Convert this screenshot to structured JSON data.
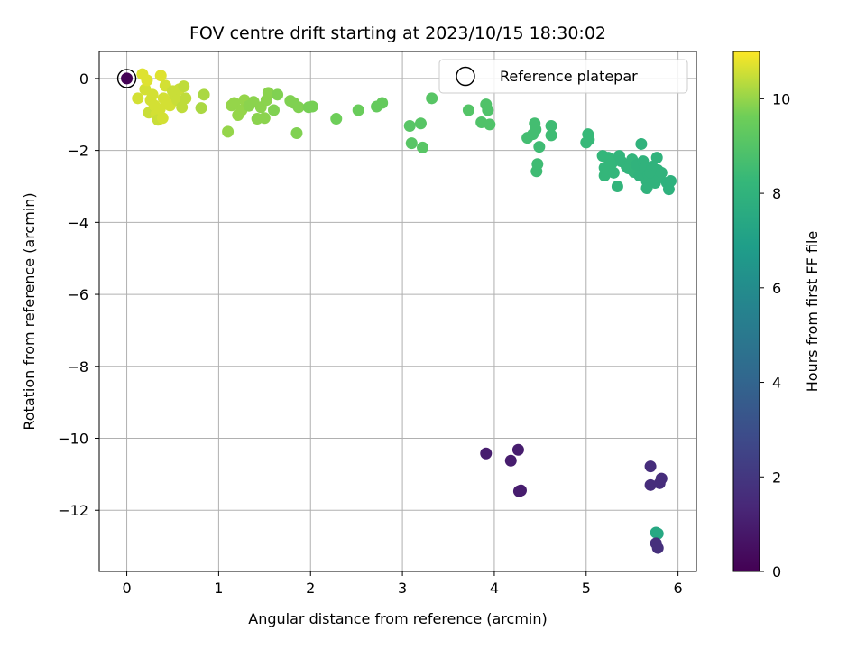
{
  "chart_data": {
    "type": "scatter",
    "title": "FOV centre drift starting at 2023/10/15 18:30:02",
    "xlabel": "Angular distance from reference (arcmin)",
    "ylabel": "Rotation from reference (arcmin)",
    "xlim": [
      -0.3,
      6.2
    ],
    "ylim": [
      -13.7,
      0.75
    ],
    "xticks": [
      0,
      1,
      2,
      3,
      4,
      5,
      6
    ],
    "yticks": [
      0,
      -2,
      -4,
      -6,
      -8,
      -10,
      -12
    ],
    "xtick_labels": [
      "0",
      "1",
      "2",
      "3",
      "4",
      "5",
      "6"
    ],
    "ytick_labels": [
      "0",
      "−2",
      "−4",
      "−6",
      "−8",
      "−10",
      "−12"
    ],
    "grid": true,
    "legend": {
      "position": "top-right",
      "entries": [
        "Reference platepar"
      ]
    },
    "colorbar": {
      "label": "Hours from first FF file",
      "colormap": "viridis",
      "range": [
        0,
        11
      ],
      "ticks": [
        0,
        2,
        4,
        6,
        8,
        10
      ],
      "tick_labels": [
        "0",
        "2",
        "4",
        "6",
        "8",
        "10"
      ]
    },
    "reference_point": {
      "x": 0,
      "y": 0
    },
    "points": [
      {
        "x": 0.0,
        "y": 0.0,
        "c": 0.05
      },
      {
        "x": 0.12,
        "y": -0.55,
        "c": 10.6
      },
      {
        "x": 0.17,
        "y": 0.12,
        "c": 10.7
      },
      {
        "x": 0.2,
        "y": -0.3,
        "c": 10.6
      },
      {
        "x": 0.22,
        "y": -0.05,
        "c": 10.7
      },
      {
        "x": 0.24,
        "y": -0.95,
        "c": 10.5
      },
      {
        "x": 0.26,
        "y": -0.6,
        "c": 10.6
      },
      {
        "x": 0.28,
        "y": -0.45,
        "c": 10.6
      },
      {
        "x": 0.3,
        "y": -0.75,
        "c": 10.6
      },
      {
        "x": 0.32,
        "y": -1.0,
        "c": 10.6
      },
      {
        "x": 0.34,
        "y": -1.15,
        "c": 10.5
      },
      {
        "x": 0.36,
        "y": -0.85,
        "c": 10.6
      },
      {
        "x": 0.37,
        "y": 0.08,
        "c": 10.7
      },
      {
        "x": 0.39,
        "y": -1.1,
        "c": 10.6
      },
      {
        "x": 0.4,
        "y": -0.55,
        "c": 10.6
      },
      {
        "x": 0.42,
        "y": -0.2,
        "c": 10.6
      },
      {
        "x": 0.44,
        "y": -0.65,
        "c": 10.6
      },
      {
        "x": 0.47,
        "y": -0.75,
        "c": 10.6
      },
      {
        "x": 0.5,
        "y": -0.35,
        "c": 10.5
      },
      {
        "x": 0.52,
        "y": -0.45,
        "c": 10.5
      },
      {
        "x": 0.55,
        "y": -0.6,
        "c": 10.5
      },
      {
        "x": 0.57,
        "y": -0.3,
        "c": 10.5
      },
      {
        "x": 0.6,
        "y": -0.8,
        "c": 10.4
      },
      {
        "x": 0.62,
        "y": -0.22,
        "c": 10.4
      },
      {
        "x": 0.64,
        "y": -0.55,
        "c": 10.4
      },
      {
        "x": 0.81,
        "y": -0.82,
        "c": 10.2
      },
      {
        "x": 0.84,
        "y": -0.45,
        "c": 10.2
      },
      {
        "x": 1.1,
        "y": -1.48,
        "c": 10.0
      },
      {
        "x": 1.14,
        "y": -0.75,
        "c": 10.0
      },
      {
        "x": 1.17,
        "y": -0.68,
        "c": 10.0
      },
      {
        "x": 1.21,
        "y": -1.02,
        "c": 10.0
      },
      {
        "x": 1.25,
        "y": -0.88,
        "c": 10.0
      },
      {
        "x": 1.28,
        "y": -0.6,
        "c": 10.0
      },
      {
        "x": 1.33,
        "y": -0.76,
        "c": 9.9
      },
      {
        "x": 1.38,
        "y": -0.65,
        "c": 9.9
      },
      {
        "x": 1.42,
        "y": -1.12,
        "c": 9.9
      },
      {
        "x": 1.46,
        "y": -0.8,
        "c": 9.9
      },
      {
        "x": 1.5,
        "y": -1.1,
        "c": 9.9
      },
      {
        "x": 1.52,
        "y": -0.6,
        "c": 9.9
      },
      {
        "x": 1.54,
        "y": -0.4,
        "c": 9.9
      },
      {
        "x": 1.6,
        "y": -0.88,
        "c": 9.8
      },
      {
        "x": 1.64,
        "y": -0.45,
        "c": 9.8
      },
      {
        "x": 1.78,
        "y": -0.62,
        "c": 9.8
      },
      {
        "x": 1.82,
        "y": -0.68,
        "c": 9.8
      },
      {
        "x": 1.85,
        "y": -1.52,
        "c": 9.8
      },
      {
        "x": 1.87,
        "y": -0.8,
        "c": 9.8
      },
      {
        "x": 1.98,
        "y": -0.8,
        "c": 9.7
      },
      {
        "x": 2.02,
        "y": -0.78,
        "c": 9.7
      },
      {
        "x": 2.28,
        "y": -1.12,
        "c": 9.6
      },
      {
        "x": 2.52,
        "y": -0.88,
        "c": 9.5
      },
      {
        "x": 2.72,
        "y": -0.78,
        "c": 9.4
      },
      {
        "x": 2.78,
        "y": -0.68,
        "c": 9.4
      },
      {
        "x": 3.08,
        "y": -1.32,
        "c": 9.1
      },
      {
        "x": 3.1,
        "y": -1.8,
        "c": 9.1
      },
      {
        "x": 3.2,
        "y": -1.25,
        "c": 9.1
      },
      {
        "x": 3.22,
        "y": -1.92,
        "c": 9.1
      },
      {
        "x": 3.32,
        "y": -0.55,
        "c": 9.1
      },
      {
        "x": 3.72,
        "y": -0.88,
        "c": 9.0
      },
      {
        "x": 3.86,
        "y": -1.22,
        "c": 8.9
      },
      {
        "x": 3.91,
        "y": -0.72,
        "c": 8.9
      },
      {
        "x": 3.93,
        "y": -0.88,
        "c": 8.9
      },
      {
        "x": 3.95,
        "y": -1.28,
        "c": 8.9
      },
      {
        "x": 4.36,
        "y": -1.65,
        "c": 8.6
      },
      {
        "x": 4.42,
        "y": -1.55,
        "c": 8.6
      },
      {
        "x": 4.44,
        "y": -1.25,
        "c": 8.6
      },
      {
        "x": 4.45,
        "y": -1.42,
        "c": 8.6
      },
      {
        "x": 4.46,
        "y": -2.58,
        "c": 8.5
      },
      {
        "x": 4.47,
        "y": -2.38,
        "c": 8.5
      },
      {
        "x": 4.49,
        "y": -1.9,
        "c": 8.5
      },
      {
        "x": 4.62,
        "y": -1.32,
        "c": 8.5
      },
      {
        "x": 4.62,
        "y": -1.58,
        "c": 8.5
      },
      {
        "x": 5.0,
        "y": -1.78,
        "c": 8.3
      },
      {
        "x": 5.02,
        "y": -1.55,
        "c": 8.3
      },
      {
        "x": 5.03,
        "y": -1.7,
        "c": 8.3
      },
      {
        "x": 5.18,
        "y": -2.15,
        "c": 8.2
      },
      {
        "x": 5.2,
        "y": -2.48,
        "c": 8.2
      },
      {
        "x": 5.2,
        "y": -2.7,
        "c": 8.2
      },
      {
        "x": 5.24,
        "y": -2.2,
        "c": 8.2
      },
      {
        "x": 5.28,
        "y": -2.35,
        "c": 8.2
      },
      {
        "x": 5.3,
        "y": -2.62,
        "c": 8.2
      },
      {
        "x": 5.34,
        "y": -3.0,
        "c": 8.1
      },
      {
        "x": 5.36,
        "y": -2.15,
        "c": 8.1
      },
      {
        "x": 5.38,
        "y": -2.3,
        "c": 8.1
      },
      {
        "x": 5.44,
        "y": -2.45,
        "c": 8.1
      },
      {
        "x": 5.46,
        "y": -2.5,
        "c": 8.1
      },
      {
        "x": 5.5,
        "y": -2.25,
        "c": 8.1
      },
      {
        "x": 5.52,
        "y": -2.6,
        "c": 8.1
      },
      {
        "x": 5.55,
        "y": -2.4,
        "c": 8.0
      },
      {
        "x": 5.58,
        "y": -2.7,
        "c": 8.0
      },
      {
        "x": 5.6,
        "y": -1.82,
        "c": 8.0
      },
      {
        "x": 5.62,
        "y": -2.3,
        "c": 8.0
      },
      {
        "x": 5.64,
        "y": -2.5,
        "c": 8.0
      },
      {
        "x": 5.66,
        "y": -2.85,
        "c": 8.0
      },
      {
        "x": 5.68,
        "y": -2.68,
        "c": 8.0
      },
      {
        "x": 5.7,
        "y": -2.62,
        "c": 8.0
      },
      {
        "x": 5.72,
        "y": -2.45,
        "c": 8.0
      },
      {
        "x": 5.75,
        "y": -2.9,
        "c": 8.0
      },
      {
        "x": 5.77,
        "y": -2.2,
        "c": 8.0
      },
      {
        "x": 5.78,
        "y": -2.55,
        "c": 8.0
      },
      {
        "x": 5.8,
        "y": -2.75,
        "c": 8.0
      },
      {
        "x": 5.82,
        "y": -2.62,
        "c": 8.0
      },
      {
        "x": 5.88,
        "y": -2.9,
        "c": 7.9
      },
      {
        "x": 5.9,
        "y": -3.08,
        "c": 7.9
      },
      {
        "x": 5.92,
        "y": -2.85,
        "c": 7.9
      },
      {
        "x": 5.66,
        "y": -3.05,
        "c": 8.0
      },
      {
        "x": 5.76,
        "y": -12.62,
        "c": 7.4
      },
      {
        "x": 5.78,
        "y": -12.65,
        "c": 7.4
      },
      {
        "x": 3.91,
        "y": -10.42,
        "c": 1.0
      },
      {
        "x": 4.18,
        "y": -10.62,
        "c": 1.0
      },
      {
        "x": 4.26,
        "y": -10.32,
        "c": 1.0
      },
      {
        "x": 4.27,
        "y": -11.47,
        "c": 1.0
      },
      {
        "x": 4.29,
        "y": -11.45,
        "c": 1.0
      },
      {
        "x": 5.7,
        "y": -10.78,
        "c": 1.6
      },
      {
        "x": 5.7,
        "y": -11.3,
        "c": 1.6
      },
      {
        "x": 5.76,
        "y": -12.92,
        "c": 1.7
      },
      {
        "x": 5.78,
        "y": -13.05,
        "c": 1.7
      },
      {
        "x": 5.8,
        "y": -11.25,
        "c": 1.6
      },
      {
        "x": 5.82,
        "y": -11.12,
        "c": 1.6
      }
    ]
  }
}
